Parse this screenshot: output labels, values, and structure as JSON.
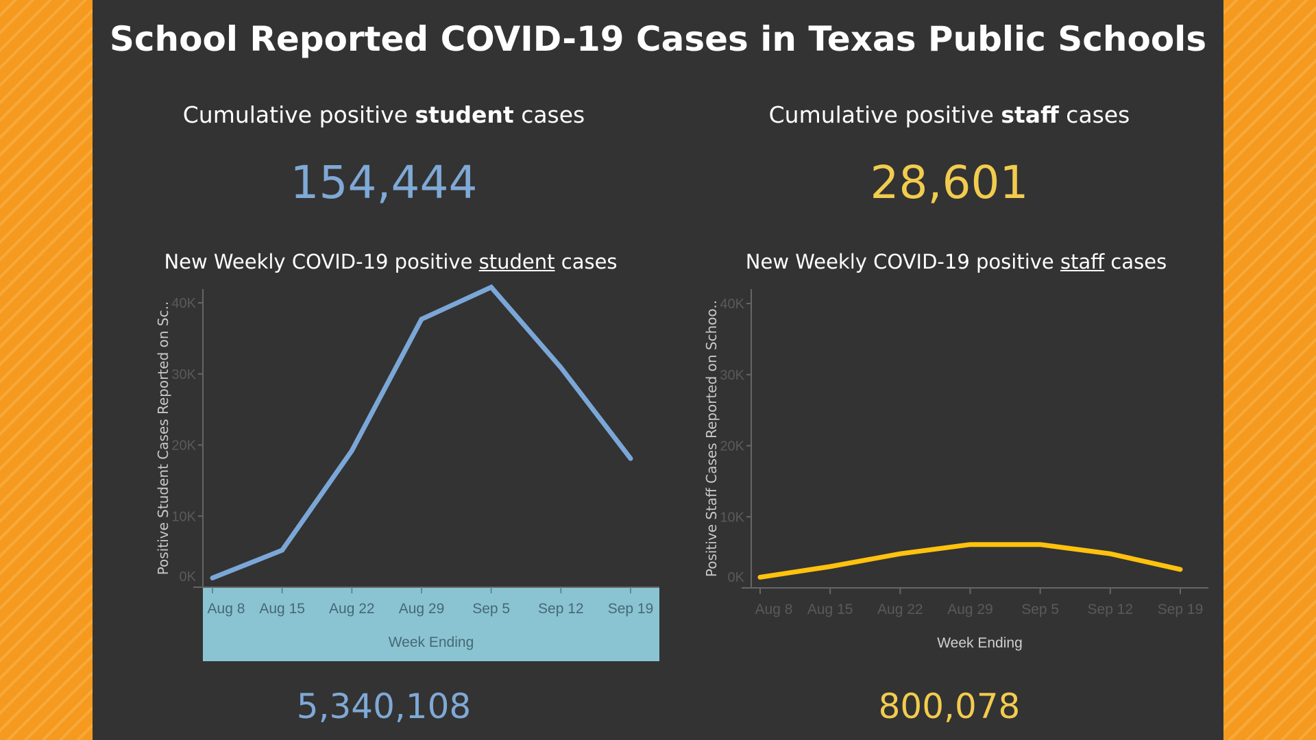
{
  "title": "School Reported COVID-19 Cases in Texas Public Schools",
  "student": {
    "cumulative_pre": "Cumulative positive ",
    "cumulative_bold": "student",
    "cumulative_post": " cases",
    "cumulative_value": "154,444",
    "weekly_pre": "New Weekly COVID-19 positive ",
    "weekly_bold": "student",
    "weekly_post": " cases",
    "bottom_value": "5,340,108"
  },
  "staff": {
    "cumulative_pre": "Cumulative positive ",
    "cumulative_bold": "staff",
    "cumulative_post": " cases",
    "cumulative_value": "28,601",
    "weekly_pre": "New Weekly COVID-19 positive ",
    "weekly_bold": "staff",
    "weekly_post": " cases",
    "bottom_value": "800,078"
  },
  "colors": {
    "student": "#7ba7d8",
    "student_number": "#7fa9d6",
    "staff": "#ffc20e",
    "staff_number": "#f2cc4e",
    "highlight_band": "#8ac4d3",
    "background": "#f59a1e",
    "panel": "#333333"
  },
  "chart_data": [
    {
      "type": "line",
      "xlabel": "Week Ending",
      "ylabel": "Positive Student Cases Reported on Sc..",
      "categories": [
        "Aug 8",
        "Aug 15",
        "Aug 22",
        "Aug 29",
        "Sep 5",
        "Sep 12",
        "Sep 19"
      ],
      "values": [
        1300,
        5200,
        19200,
        37700,
        42200,
        30900,
        18100
      ],
      "yticks": [
        "0K",
        "10K",
        "20K",
        "30K",
        "40K"
      ],
      "ylim": [
        0,
        42000
      ],
      "grid": false,
      "x_axis_highlighted": true
    },
    {
      "type": "line",
      "xlabel": "Week Ending",
      "ylabel": "Positive Staff Cases Reported on Schoo..",
      "categories": [
        "Aug 8",
        "Aug 15",
        "Aug 22",
        "Aug 29",
        "Sep 5",
        "Sep 12",
        "Sep 19"
      ],
      "values": [
        1500,
        3000,
        4800,
        6100,
        6100,
        4800,
        2600
      ],
      "yticks": [
        "0K",
        "10K",
        "20K",
        "30K",
        "40K"
      ],
      "ylim": [
        0,
        42000
      ],
      "grid": false,
      "x_axis_highlighted": false
    }
  ]
}
